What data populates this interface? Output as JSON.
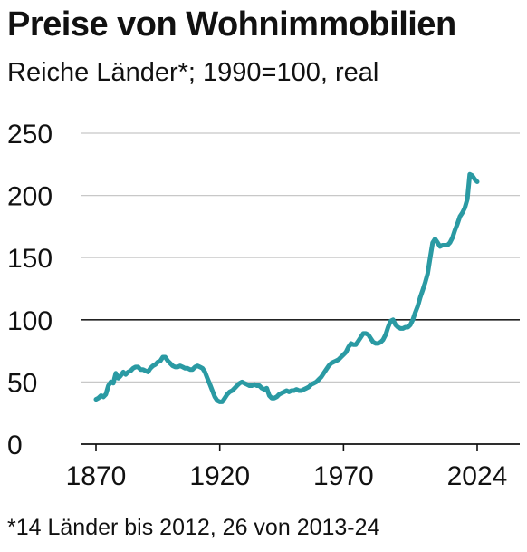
{
  "title": "Preise von Wohnimmobilien",
  "subtitle": "Reiche Länder*; 1990=100, real",
  "footnote": "*14 Länder bis 2012, 26 von 2013-24",
  "line_color": "#2a9aa3",
  "chart_data": {
    "type": "line",
    "title": "Preise von Wohnimmobilien",
    "subtitle": "Reiche Länder*; 1990=100, real",
    "xlabel": "",
    "ylabel": "",
    "xlim": [
      1870,
      2024
    ],
    "ylim": [
      0,
      250
    ],
    "yticks": [
      "0",
      "50",
      "100",
      "150",
      "200",
      "250"
    ],
    "xticks": [
      "1870",
      "1920",
      "1970",
      "2024"
    ],
    "reference_line": 100,
    "grid": "horizontal",
    "series": [
      {
        "x": [
          1870,
          1871,
          1872,
          1873,
          1874,
          1875,
          1876,
          1877,
          1878,
          1879,
          1880,
          1881,
          1882,
          1883,
          1884,
          1885,
          1886,
          1887,
          1888,
          1889,
          1890,
          1891,
          1892,
          1893,
          1894,
          1895,
          1896,
          1897,
          1898,
          1899,
          1900,
          1901,
          1902,
          1903,
          1904,
          1905,
          1906,
          1907,
          1908,
          1909,
          1910,
          1911,
          1912,
          1913,
          1914,
          1915,
          1916,
          1917,
          1918,
          1919,
          1920,
          1921,
          1922,
          1923,
          1924,
          1925,
          1926,
          1927,
          1928,
          1929,
          1930,
          1931,
          1932,
          1933,
          1934,
          1935,
          1936,
          1937,
          1938,
          1939,
          1940,
          1941,
          1942,
          1943,
          1944,
          1945,
          1946,
          1947,
          1948,
          1949,
          1950,
          1951,
          1952,
          1953,
          1954,
          1955,
          1956,
          1957,
          1958,
          1959,
          1960,
          1961,
          1962,
          1963,
          1964,
          1965,
          1966,
          1967,
          1968,
          1969,
          1970,
          1971,
          1972,
          1973,
          1974,
          1975,
          1976,
          1977,
          1978,
          1979,
          1980,
          1981,
          1982,
          1983,
          1984,
          1985,
          1986,
          1987,
          1988,
          1989,
          1990,
          1991,
          1992,
          1993,
          1994,
          1995,
          1996,
          1997,
          1998,
          1999,
          2000,
          2001,
          2002,
          2003,
          2004,
          2005,
          2006,
          2007,
          2008,
          2009,
          2010,
          2011,
          2012,
          2013,
          2014,
          2015,
          2016,
          2017,
          2018,
          2019,
          2020,
          2021,
          2022,
          2023,
          2024
        ],
        "values": [
          36,
          37,
          39,
          38,
          40,
          47,
          50,
          49,
          57,
          53,
          55,
          58,
          56,
          58,
          59,
          61,
          62,
          62,
          60,
          60,
          59,
          58,
          61,
          63,
          64,
          66,
          67,
          70,
          70,
          67,
          65,
          63,
          62,
          62,
          63,
          62,
          61,
          61,
          60,
          60,
          62,
          63,
          62,
          61,
          58,
          53,
          48,
          43,
          38,
          35,
          34,
          34,
          37,
          40,
          42,
          43,
          45,
          47,
          49,
          50,
          49,
          48,
          47,
          47,
          48,
          47,
          47,
          45,
          44,
          45,
          39,
          37,
          37,
          38,
          40,
          41,
          42,
          43,
          42,
          43,
          43,
          44,
          43,
          43,
          44,
          45,
          46,
          48,
          49,
          50,
          52,
          54,
          57,
          60,
          63,
          65,
          66,
          67,
          68,
          70,
          72,
          74,
          78,
          81,
          80,
          80,
          83,
          86,
          89,
          89,
          88,
          85,
          82,
          81,
          81,
          82,
          84,
          88,
          94,
          99,
          100,
          96,
          94,
          93,
          93,
          94,
          94,
          96,
          100,
          106,
          111,
          118,
          124,
          130,
          137,
          150,
          162,
          165,
          162,
          159,
          160,
          160,
          160,
          162,
          166,
          172,
          177,
          183,
          186,
          190,
          197,
          217,
          216,
          213,
          211
        ]
      }
    ]
  }
}
